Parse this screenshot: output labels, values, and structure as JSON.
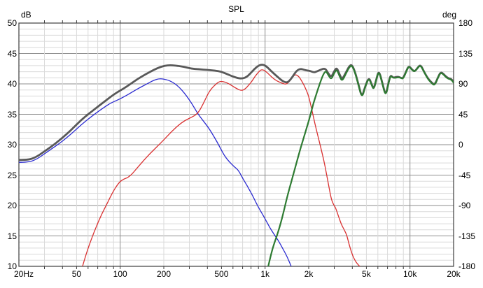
{
  "chart_data": {
    "type": "line",
    "title": "SPL",
    "x_axis": {
      "scale": "log",
      "min": 20,
      "max": 20000,
      "ticks": [
        {
          "f": 20,
          "label": "20Hz"
        },
        {
          "f": 50,
          "label": "50"
        },
        {
          "f": 100,
          "label": "100"
        },
        {
          "f": 200,
          "label": "200"
        },
        {
          "f": 500,
          "label": "500"
        },
        {
          "f": 1000,
          "label": "1k"
        },
        {
          "f": 2000,
          "label": "2k"
        },
        {
          "f": 5000,
          "label": "5k"
        },
        {
          "f": 10000,
          "label": "10k"
        },
        {
          "f": 20000,
          "label": "20k"
        }
      ],
      "major_gridlines": [
        100,
        1000,
        10000
      ],
      "minor_gridlines": [
        30,
        40,
        50,
        60,
        70,
        80,
        90,
        200,
        300,
        400,
        500,
        600,
        700,
        800,
        900,
        2000,
        3000,
        4000,
        5000,
        6000,
        7000,
        8000,
        9000
      ]
    },
    "y_left": {
      "label": "dB",
      "min": 10,
      "max": 50,
      "major_step": 5,
      "minor_step": 1,
      "tick_labels": [
        50,
        45,
        40,
        35,
        30,
        25,
        20,
        15,
        10
      ]
    },
    "y_right": {
      "label": "deg",
      "min": -180,
      "max": 180,
      "tick_labels": [
        180,
        135,
        90,
        45,
        0,
        -45,
        -90,
        -135,
        -180
      ]
    },
    "grid": true,
    "colors": {
      "grid_minor": "#dadada",
      "grid_major": "#8e8e8e",
      "frame": "#3c3c3c",
      "sum": "#595959",
      "low": "#2b2bd0",
      "mid": "#d93131",
      "high": "#2e7b32"
    },
    "series": [
      {
        "name": "low",
        "color": "#2b2bd0",
        "width": 1.3,
        "points": [
          [
            20,
            27.1
          ],
          [
            23,
            27.1
          ],
          [
            26,
            27.5
          ],
          [
            30,
            28.5
          ],
          [
            34,
            29.4
          ],
          [
            38,
            30.2
          ],
          [
            43,
            31.2
          ],
          [
            48,
            32.2
          ],
          [
            54,
            33.3
          ],
          [
            60,
            34.2
          ],
          [
            68,
            35.2
          ],
          [
            76,
            36.0
          ],
          [
            85,
            36.8
          ],
          [
            95,
            37.3
          ],
          [
            105,
            37.8
          ],
          [
            118,
            38.5
          ],
          [
            132,
            39.2
          ],
          [
            150,
            39.9
          ],
          [
            170,
            40.6
          ],
          [
            188,
            40.9
          ],
          [
            210,
            40.7
          ],
          [
            230,
            40.3
          ],
          [
            252,
            39.6
          ],
          [
            280,
            38.4
          ],
          [
            310,
            36.9
          ],
          [
            343,
            35.1
          ],
          [
            375,
            33.9
          ],
          [
            410,
            32.7
          ],
          [
            450,
            31.1
          ],
          [
            485,
            29.7
          ],
          [
            520,
            28.3
          ],
          [
            560,
            27.3
          ],
          [
            610,
            26.4
          ],
          [
            655,
            25.8
          ],
          [
            700,
            24.5
          ],
          [
            755,
            23.2
          ],
          [
            810,
            21.9
          ],
          [
            865,
            20.5
          ],
          [
            920,
            19.3
          ],
          [
            1000,
            17.8
          ],
          [
            1075,
            16.4
          ],
          [
            1150,
            15.3
          ],
          [
            1230,
            14.3
          ],
          [
            1320,
            13.0
          ],
          [
            1420,
            11.6
          ],
          [
            1515,
            10.0
          ]
        ]
      },
      {
        "name": "mid",
        "color": "#d93131",
        "width": 1.3,
        "points": [
          [
            55,
            10.0
          ],
          [
            58,
            11.9
          ],
          [
            62,
            13.9
          ],
          [
            66,
            15.6
          ],
          [
            70,
            17.1
          ],
          [
            75,
            18.7
          ],
          [
            80,
            20.0
          ],
          [
            85,
            21.3
          ],
          [
            90,
            22.4
          ],
          [
            95,
            23.3
          ],
          [
            100,
            24.0
          ],
          [
            107,
            24.4
          ],
          [
            113,
            24.6
          ],
          [
            121,
            25.2
          ],
          [
            131,
            26.2
          ],
          [
            145,
            27.4
          ],
          [
            160,
            28.5
          ],
          [
            180,
            29.7
          ],
          [
            200,
            30.8
          ],
          [
            225,
            32.1
          ],
          [
            252,
            33.2
          ],
          [
            280,
            34.0
          ],
          [
            310,
            34.5
          ],
          [
            343,
            35.1
          ],
          [
            372,
            36.6
          ],
          [
            400,
            38.2
          ],
          [
            422,
            39.1
          ],
          [
            450,
            39.8
          ],
          [
            482,
            40.4
          ],
          [
            515,
            40.4
          ],
          [
            555,
            40.1
          ],
          [
            600,
            39.6
          ],
          [
            650,
            39.1
          ],
          [
            685,
            38.9
          ],
          [
            725,
            39.1
          ],
          [
            765,
            39.7
          ],
          [
            810,
            40.4
          ],
          [
            855,
            41.3
          ],
          [
            905,
            42.0
          ],
          [
            945,
            42.4
          ],
          [
            1010,
            42.1
          ],
          [
            1100,
            41.2
          ],
          [
            1200,
            40.5
          ],
          [
            1310,
            40.1
          ],
          [
            1400,
            39.9
          ],
          [
            1500,
            40.6
          ],
          [
            1600,
            41.6
          ],
          [
            1700,
            41.3
          ],
          [
            1800,
            40.4
          ],
          [
            1900,
            39.3
          ],
          [
            2000,
            38.0
          ],
          [
            2100,
            35.8
          ],
          [
            2200,
            33.6
          ],
          [
            2310,
            31.5
          ],
          [
            2420,
            29.6
          ],
          [
            2540,
            27.5
          ],
          [
            2660,
            25.1
          ],
          [
            2760,
            23.0
          ],
          [
            2860,
            21.1
          ],
          [
            2960,
            20.2
          ],
          [
            3060,
            19.7
          ],
          [
            3200,
            18.3
          ],
          [
            3360,
            16.9
          ],
          [
            3500,
            16.1
          ],
          [
            3660,
            15.2
          ],
          [
            3800,
            13.6
          ],
          [
            3960,
            12.2
          ],
          [
            4120,
            11.2
          ],
          [
            4300,
            10.5
          ],
          [
            4500,
            10.0
          ]
        ]
      },
      {
        "name": "sum",
        "color": "#595959",
        "width": 2.8,
        "points": [
          [
            20,
            27.5
          ],
          [
            23,
            27.5
          ],
          [
            26,
            27.9
          ],
          [
            30,
            28.9
          ],
          [
            34,
            29.8
          ],
          [
            38,
            30.7
          ],
          [
            43,
            31.8
          ],
          [
            48,
            32.9
          ],
          [
            54,
            34.1
          ],
          [
            60,
            35.0
          ],
          [
            68,
            36.0
          ],
          [
            76,
            36.9
          ],
          [
            85,
            37.8
          ],
          [
            95,
            38.6
          ],
          [
            105,
            39.2
          ],
          [
            118,
            40.0
          ],
          [
            132,
            40.8
          ],
          [
            150,
            41.6
          ],
          [
            170,
            42.3
          ],
          [
            190,
            42.8
          ],
          [
            215,
            43.1
          ],
          [
            245,
            43.0
          ],
          [
            275,
            42.8
          ],
          [
            310,
            42.5
          ],
          [
            350,
            42.4
          ],
          [
            400,
            42.3
          ],
          [
            450,
            42.2
          ],
          [
            500,
            42.0
          ],
          [
            550,
            41.6
          ],
          [
            600,
            41.2
          ],
          [
            660,
            40.9
          ],
          [
            700,
            40.9
          ],
          [
            745,
            41.1
          ],
          [
            790,
            41.7
          ],
          [
            840,
            42.4
          ],
          [
            900,
            43.0
          ],
          [
            950,
            43.2
          ],
          [
            1010,
            43.0
          ],
          [
            1100,
            42.1
          ],
          [
            1200,
            41.3
          ],
          [
            1310,
            40.5
          ],
          [
            1400,
            40.2
          ],
          [
            1460,
            40.4
          ],
          [
            1550,
            41.2
          ],
          [
            1650,
            42.2
          ],
          [
            1760,
            42.5
          ],
          [
            1870,
            42.3
          ],
          [
            1960,
            42.2
          ],
          [
            2060,
            42.1
          ],
          [
            2160,
            41.9
          ],
          [
            2260,
            42.0
          ],
          [
            2400,
            42.3
          ],
          [
            2600,
            42.6
          ],
          [
            2730,
            41.7
          ],
          [
            2860,
            41.1
          ],
          [
            3000,
            42.1
          ],
          [
            3120,
            42.7
          ],
          [
            3260,
            41.6
          ],
          [
            3400,
            40.7
          ],
          [
            3600,
            41.8
          ],
          [
            3800,
            42.9
          ],
          [
            3960,
            43.2
          ],
          [
            4150,
            42.2
          ],
          [
            4400,
            40.0
          ],
          [
            4660,
            37.7
          ],
          [
            4900,
            39.6
          ],
          [
            5200,
            41.1
          ],
          [
            5420,
            40.0
          ],
          [
            5620,
            39.1
          ],
          [
            5850,
            40.7
          ],
          [
            6100,
            42.3
          ],
          [
            6450,
            40.1
          ],
          [
            6800,
            38.0
          ],
          [
            7100,
            40.2
          ],
          [
            7360,
            41.5
          ],
          [
            7620,
            41.0
          ],
          [
            7950,
            41.1
          ],
          [
            8300,
            41.2
          ],
          [
            8650,
            41.0
          ],
          [
            8950,
            40.9
          ],
          [
            9350,
            41.9
          ],
          [
            9800,
            43.0
          ],
          [
            10300,
            42.4
          ],
          [
            10750,
            42.0
          ],
          [
            11250,
            42.6
          ],
          [
            11800,
            43.2
          ],
          [
            12500,
            42.0
          ],
          [
            13300,
            40.9
          ],
          [
            14000,
            40.3
          ],
          [
            14800,
            39.8
          ],
          [
            15550,
            41.0
          ],
          [
            16300,
            42.0
          ],
          [
            17100,
            41.6
          ],
          [
            17900,
            41.1
          ],
          [
            18600,
            40.9
          ],
          [
            19300,
            40.8
          ],
          [
            20000,
            40.3
          ]
        ]
      },
      {
        "name": "high",
        "color": "#2e7b32",
        "width": 2.2,
        "points": [
          [
            1052,
            10.0
          ],
          [
            1085,
            11.4
          ],
          [
            1125,
            12.9
          ],
          [
            1165,
            14.0
          ],
          [
            1210,
            15.1
          ],
          [
            1265,
            16.6
          ],
          [
            1325,
            18.4
          ],
          [
            1400,
            20.8
          ],
          [
            1480,
            23.0
          ],
          [
            1565,
            25.1
          ],
          [
            1655,
            27.2
          ],
          [
            1750,
            29.3
          ],
          [
            1850,
            31.2
          ],
          [
            1955,
            33.1
          ],
          [
            2060,
            35.0
          ],
          [
            2160,
            36.9
          ],
          [
            2270,
            38.5
          ],
          [
            2390,
            40.1
          ],
          [
            2500,
            41.4
          ],
          [
            2620,
            42.2
          ],
          [
            2740,
            41.4
          ],
          [
            2860,
            40.7
          ],
          [
            3000,
            41.8
          ],
          [
            3120,
            42.4
          ],
          [
            3260,
            41.3
          ],
          [
            3400,
            40.4
          ],
          [
            3600,
            41.6
          ],
          [
            3800,
            42.7
          ],
          [
            3960,
            43.1
          ],
          [
            4150,
            42.1
          ],
          [
            4400,
            39.9
          ],
          [
            4660,
            37.6
          ],
          [
            4900,
            39.5
          ],
          [
            5200,
            41.0
          ],
          [
            5420,
            39.9
          ],
          [
            5620,
            39.0
          ],
          [
            5850,
            40.7
          ],
          [
            6100,
            42.2
          ],
          [
            6450,
            40.0
          ],
          [
            6800,
            37.9
          ],
          [
            7100,
            40.1
          ],
          [
            7360,
            41.4
          ],
          [
            7620,
            41.0
          ],
          [
            7950,
            41.0
          ],
          [
            8300,
            41.1
          ],
          [
            8650,
            41.0
          ],
          [
            8950,
            40.8
          ],
          [
            9350,
            41.8
          ],
          [
            9800,
            43.0
          ],
          [
            10300,
            42.3
          ],
          [
            10750,
            42.0
          ],
          [
            11250,
            42.6
          ],
          [
            11800,
            43.1
          ],
          [
            12500,
            42.0
          ],
          [
            13300,
            40.8
          ],
          [
            14000,
            40.2
          ],
          [
            14800,
            39.7
          ],
          [
            15550,
            41.0
          ],
          [
            16300,
            41.9
          ],
          [
            17100,
            41.5
          ],
          [
            17900,
            41.0
          ],
          [
            18600,
            40.8
          ],
          [
            19300,
            40.7
          ],
          [
            20000,
            40.2
          ]
        ]
      }
    ]
  }
}
